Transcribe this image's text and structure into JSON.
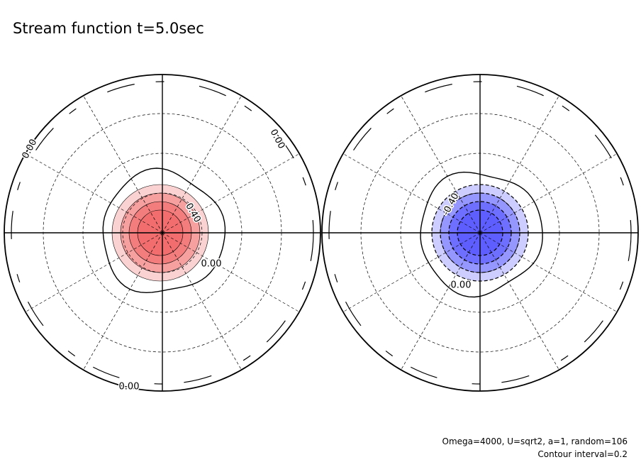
{
  "chart_data": {
    "type": "contour",
    "title": "Stream function t=5.0sec",
    "annotations": [
      "Omega=4000, U=sqrt2, a=1, random=106",
      "Contour interval=0.2"
    ],
    "panels": [
      {
        "fill": "#f26b6b",
        "contour_labels": [
          "0.40",
          "0.00",
          "0.00",
          "0.00",
          "0.00"
        ]
      },
      {
        "fill": "#5a5aff",
        "contour_labels": [
          "-0.40",
          "0.00"
        ]
      }
    ]
  }
}
